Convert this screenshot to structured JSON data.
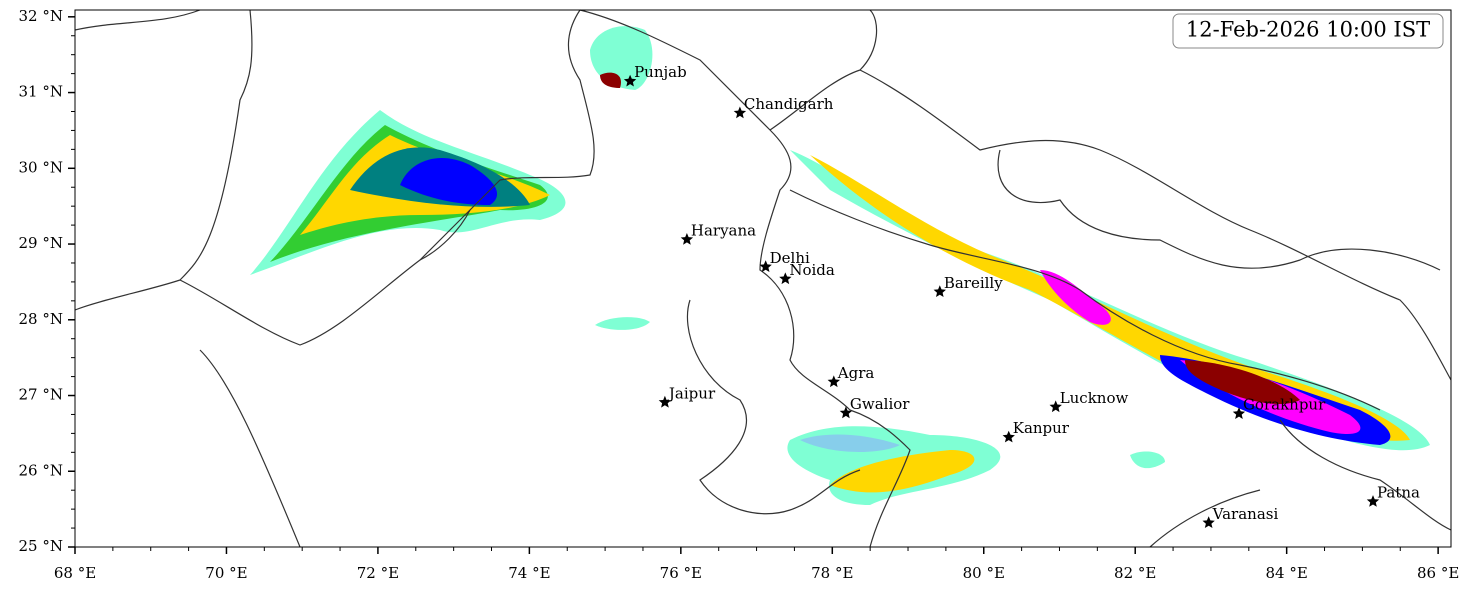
{
  "title": "12-Feb-2026 10:00 IST",
  "xlim": [
    68,
    86.17
  ],
  "ylim": [
    25,
    32.09
  ],
  "xticks": [
    {
      "value": 68,
      "label": "68 °E"
    },
    {
      "value": 70,
      "label": "70 °E"
    },
    {
      "value": 72,
      "label": "72 °E"
    },
    {
      "value": 74,
      "label": "74 °E"
    },
    {
      "value": 76,
      "label": "76 °E"
    },
    {
      "value": 78,
      "label": "78 °E"
    },
    {
      "value": 80,
      "label": "80 °E"
    },
    {
      "value": 82,
      "label": "82 °E"
    },
    {
      "value": 84,
      "label": "84 °E"
    },
    {
      "value": 86,
      "label": "86 °E"
    }
  ],
  "yticks": [
    {
      "value": 25,
      "label": "25 °N"
    },
    {
      "value": 26,
      "label": "26 °N"
    },
    {
      "value": 27,
      "label": "27 °N"
    },
    {
      "value": 28,
      "label": "28 °N"
    },
    {
      "value": 29,
      "label": "29 °N"
    },
    {
      "value": 30,
      "label": "30 °N"
    },
    {
      "value": 31,
      "label": "31 °N"
    },
    {
      "value": 32,
      "label": "32 °N"
    }
  ],
  "cities": [
    {
      "name": "Punjab",
      "lon": 75.33,
      "lat": 31.15
    },
    {
      "name": "Chandigarh",
      "lon": 76.78,
      "lat": 30.73
    },
    {
      "name": "Haryana",
      "lon": 76.08,
      "lat": 29.06
    },
    {
      "name": "Delhi",
      "lon": 77.12,
      "lat": 28.7
    },
    {
      "name": "Noida",
      "lon": 77.38,
      "lat": 28.54
    },
    {
      "name": "Bareilly",
      "lon": 79.42,
      "lat": 28.37
    },
    {
      "name": "Jaipur",
      "lon": 75.79,
      "lat": 26.91
    },
    {
      "name": "Agra",
      "lon": 78.02,
      "lat": 27.18
    },
    {
      "name": "Gwalior",
      "lon": 78.18,
      "lat": 26.77
    },
    {
      "name": "Lucknow",
      "lon": 80.95,
      "lat": 26.85
    },
    {
      "name": "Kanpur",
      "lon": 80.33,
      "lat": 26.45
    },
    {
      "name": "Gorakhpur",
      "lon": 83.37,
      "lat": 26.76
    },
    {
      "name": "Varanasi",
      "lon": 82.97,
      "lat": 25.32
    },
    {
      "name": "Patna",
      "lon": 85.14,
      "lat": 25.6
    }
  ]
}
